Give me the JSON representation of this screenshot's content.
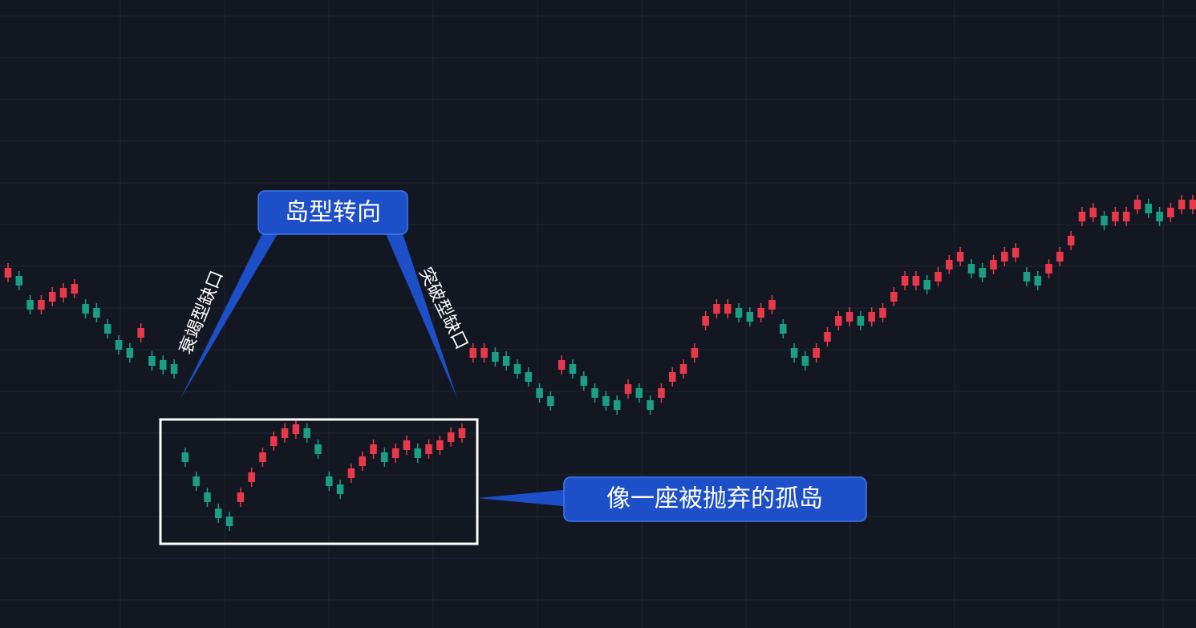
{
  "chart_data": {
    "type": "candlestick",
    "up_color": "#e8394a",
    "down_color": "#1a9e84",
    "ylim": [
      0,
      783
    ],
    "ohlc": [
      [
        437,
        455,
        431,
        449
      ],
      [
        439,
        445,
        421,
        427
      ],
      [
        409,
        415,
        391,
        397
      ],
      [
        397,
        415,
        391,
        409
      ],
      [
        407,
        425,
        401,
        419
      ],
      [
        412,
        430,
        406,
        424
      ],
      [
        417,
        435,
        411,
        429
      ],
      [
        404,
        410,
        386,
        392
      ],
      [
        399,
        405,
        381,
        387
      ],
      [
        379,
        385,
        361,
        367
      ],
      [
        359,
        365,
        341,
        347
      ],
      [
        349,
        355,
        331,
        337
      ],
      [
        362,
        380,
        356,
        374
      ],
      [
        339,
        345,
        321,
        327
      ],
      [
        334,
        340,
        316,
        322
      ],
      [
        329,
        335,
        311,
        317
      ],
      [
        219,
        225,
        201,
        207
      ],
      [
        189,
        195,
        171,
        177
      ],
      [
        169,
        175,
        151,
        157
      ],
      [
        149,
        155,
        131,
        137
      ],
      [
        139,
        145,
        121,
        127
      ],
      [
        157,
        175,
        151,
        169
      ],
      [
        182,
        200,
        176,
        194
      ],
      [
        207,
        225,
        201,
        219
      ],
      [
        227,
        245,
        221,
        239
      ],
      [
        237,
        255,
        231,
        249
      ],
      [
        242,
        260,
        236,
        254
      ],
      [
        249,
        255,
        231,
        237
      ],
      [
        229,
        235,
        211,
        217
      ],
      [
        189,
        195,
        171,
        177
      ],
      [
        179,
        185,
        161,
        167
      ],
      [
        187,
        205,
        181,
        199
      ],
      [
        202,
        220,
        196,
        214
      ],
      [
        217,
        235,
        211,
        229
      ],
      [
        219,
        225,
        201,
        207
      ],
      [
        212,
        230,
        206,
        224
      ],
      [
        222,
        240,
        216,
        234
      ],
      [
        224,
        230,
        206,
        212
      ],
      [
        217,
        235,
        211,
        229
      ],
      [
        222,
        240,
        216,
        234
      ],
      [
        232,
        250,
        226,
        244
      ],
      [
        237,
        255,
        231,
        249
      ],
      [
        337,
        355,
        331,
        349
      ],
      [
        337,
        355,
        331,
        349
      ],
      [
        344,
        350,
        326,
        332
      ],
      [
        339,
        345,
        321,
        327
      ],
      [
        329,
        335,
        311,
        317
      ],
      [
        319,
        325,
        301,
        307
      ],
      [
        299,
        305,
        281,
        287
      ],
      [
        289,
        295,
        271,
        277
      ],
      [
        322,
        340,
        316,
        334
      ],
      [
        329,
        335,
        311,
        317
      ],
      [
        314,
        320,
        296,
        302
      ],
      [
        299,
        305,
        281,
        287
      ],
      [
        289,
        295,
        271,
        277
      ],
      [
        284,
        290,
        266,
        272
      ],
      [
        292,
        310,
        286,
        304
      ],
      [
        299,
        305,
        281,
        287
      ],
      [
        284,
        290,
        266,
        272
      ],
      [
        287,
        305,
        281,
        299
      ],
      [
        307,
        325,
        301,
        319
      ],
      [
        317,
        335,
        311,
        329
      ],
      [
        337,
        355,
        331,
        349
      ],
      [
        377,
        395,
        371,
        389
      ],
      [
        392,
        410,
        386,
        404
      ],
      [
        392,
        410,
        386,
        404
      ],
      [
        399,
        405,
        381,
        387
      ],
      [
        394,
        400,
        376,
        382
      ],
      [
        387,
        405,
        381,
        399
      ],
      [
        397,
        415,
        391,
        409
      ],
      [
        379,
        385,
        361,
        367
      ],
      [
        349,
        355,
        331,
        337
      ],
      [
        339,
        345,
        321,
        327
      ],
      [
        337,
        355,
        331,
        349
      ],
      [
        357,
        375,
        351,
        369
      ],
      [
        377,
        395,
        371,
        389
      ],
      [
        382,
        400,
        376,
        394
      ],
      [
        389,
        395,
        371,
        377
      ],
      [
        382,
        400,
        376,
        394
      ],
      [
        387,
        405,
        381,
        399
      ],
      [
        407,
        425,
        401,
        419
      ],
      [
        427,
        445,
        421,
        439
      ],
      [
        427,
        445,
        421,
        439
      ],
      [
        434,
        440,
        416,
        422
      ],
      [
        432,
        450,
        426,
        444
      ],
      [
        447,
        465,
        441,
        459
      ],
      [
        457,
        475,
        451,
        469
      ],
      [
        454,
        460,
        436,
        442
      ],
      [
        449,
        455,
        431,
        437
      ],
      [
        447,
        465,
        441,
        459
      ],
      [
        457,
        475,
        451,
        469
      ],
      [
        462,
        480,
        456,
        474
      ],
      [
        444,
        450,
        426,
        432
      ],
      [
        439,
        445,
        421,
        427
      ],
      [
        442,
        460,
        436,
        454
      ],
      [
        457,
        475,
        451,
        469
      ],
      [
        477,
        495,
        471,
        489
      ],
      [
        507,
        525,
        501,
        519
      ],
      [
        512,
        530,
        506,
        524
      ],
      [
        514,
        520,
        496,
        502
      ],
      [
        507,
        525,
        501,
        519
      ],
      [
        507,
        525,
        501,
        519
      ],
      [
        522,
        540,
        516,
        534
      ],
      [
        529,
        535,
        511,
        517
      ],
      [
        519,
        525,
        501,
        507
      ],
      [
        512,
        530,
        506,
        524
      ],
      [
        522,
        540,
        516,
        534
      ],
      [
        522,
        540,
        516,
        534
      ]
    ],
    "annotations": [
      "岛型转向",
      "衰竭型缺口",
      "突破型缺口",
      "像一座被抛弃的孤岛"
    ]
  }
}
